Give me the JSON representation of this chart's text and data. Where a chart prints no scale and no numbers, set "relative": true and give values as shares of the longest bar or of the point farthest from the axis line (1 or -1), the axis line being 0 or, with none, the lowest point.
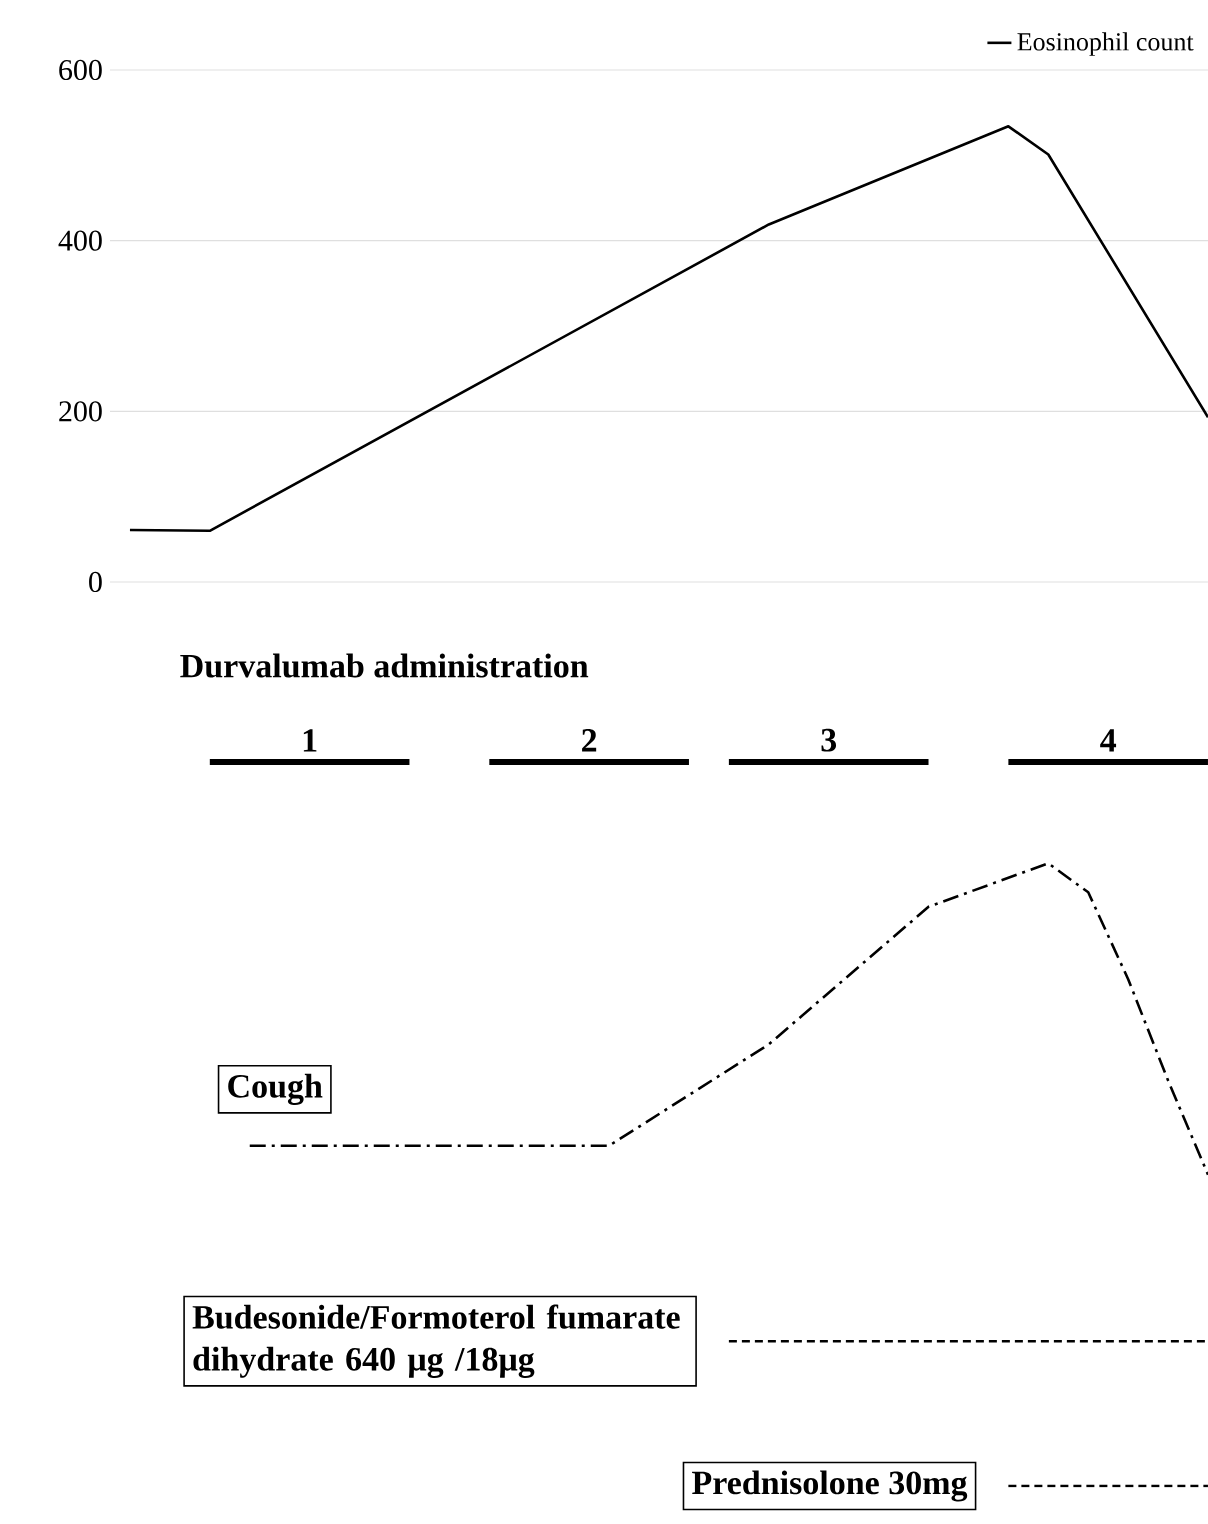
{
  "chart_data": [
    {
      "type": "line",
      "categories": [
        null,
        null,
        null,
        null,
        null,
        null,
        null,
        null,
        null,
        null,
        null,
        null,
        null,
        null,
        null,
        null,
        null,
        null,
        null,
        null,
        null,
        null,
        null,
        null,
        null,
        null,
        null,
        null
      ],
      "series": [
        {
          "name": "Eosinophil count",
          "color": "#000000",
          "line_style": "solid",
          "values": [
            61,
            null,
            60,
            null,
            null,
            null,
            null,
            null,
            null,
            null,
            null,
            null,
            null,
            null,
            null,
            null,
            419,
            null,
            null,
            null,
            null,
            null,
            534,
            501,
            null,
            null,
            null,
            193
          ]
        }
      ],
      "ylim": [
        0,
        600
      ],
      "yticks": [
        0,
        200,
        400,
        600
      ],
      "grid": "y",
      "legend": "top right"
    },
    {
      "type": "line",
      "relative": true,
      "categories": [
        null,
        null,
        null,
        null,
        null,
        null,
        null,
        null,
        null,
        null,
        null,
        null,
        null,
        null,
        null,
        null,
        null,
        null,
        null,
        null,
        null,
        null,
        null,
        null,
        null,
        null,
        null,
        null
      ],
      "annotations": [
        "Durvalumab administration"
      ],
      "series": [
        {
          "name": "1",
          "color": "#000000",
          "line_style": "solid",
          "values": [
            null,
            null,
            1,
            null,
            null,
            null,
            null,
            1,
            null,
            null,
            null,
            null,
            null,
            null,
            null,
            null,
            null,
            null,
            null,
            null,
            null,
            null,
            null,
            null,
            null,
            null,
            null,
            null
          ]
        },
        {
          "name": "2",
          "color": "#000000",
          "line_style": "solid",
          "values": [
            null,
            null,
            null,
            null,
            null,
            null,
            null,
            null,
            null,
            1,
            null,
            null,
            null,
            null,
            1,
            null,
            null,
            null,
            null,
            null,
            null,
            null,
            null,
            null,
            null,
            null,
            null,
            null
          ]
        },
        {
          "name": "3",
          "color": "#000000",
          "line_style": "solid",
          "values": [
            null,
            null,
            null,
            null,
            null,
            null,
            null,
            null,
            null,
            null,
            null,
            null,
            null,
            null,
            null,
            1,
            null,
            null,
            null,
            null,
            1,
            null,
            null,
            null,
            null,
            null,
            null,
            null
          ]
        },
        {
          "name": "4",
          "color": "#000000",
          "line_style": "solid",
          "values": [
            null,
            null,
            null,
            null,
            null,
            null,
            null,
            null,
            null,
            null,
            null,
            null,
            null,
            null,
            null,
            null,
            null,
            null,
            null,
            null,
            null,
            null,
            1,
            null,
            null,
            null,
            null,
            1
          ]
        },
        {
          "name": "Cough",
          "color": "#000000",
          "line_style": "dashdot",
          "values": [
            null,
            null,
            null,
            0.47,
            null,
            null,
            null,
            null,
            null,
            null,
            null,
            null,
            0.47,
            null,
            null,
            null,
            0.61,
            null,
            null,
            null,
            0.8,
            null,
            null,
            0.86,
            0.82,
            0.7,
            0.56,
            0.43
          ]
        },
        {
          "name": "Budesonide/Formoterol fumarate dihydrate 640 μg /18μg",
          "color": "#000000",
          "line_style": "dashed",
          "values": [
            null,
            null,
            null,
            null,
            null,
            null,
            null,
            null,
            null,
            null,
            null,
            null,
            null,
            null,
            null,
            0.2,
            null,
            null,
            null,
            null,
            null,
            null,
            null,
            null,
            null,
            null,
            null,
            0.2
          ]
        },
        {
          "name": "Prednisolone 30mg",
          "color": "#000000",
          "line_style": "dashed",
          "values": [
            null,
            null,
            null,
            null,
            null,
            null,
            null,
            null,
            null,
            null,
            null,
            null,
            null,
            null,
            null,
            null,
            null,
            null,
            null,
            null,
            null,
            null,
            0,
            null,
            null,
            null,
            null,
            0
          ]
        }
      ]
    }
  ]
}
